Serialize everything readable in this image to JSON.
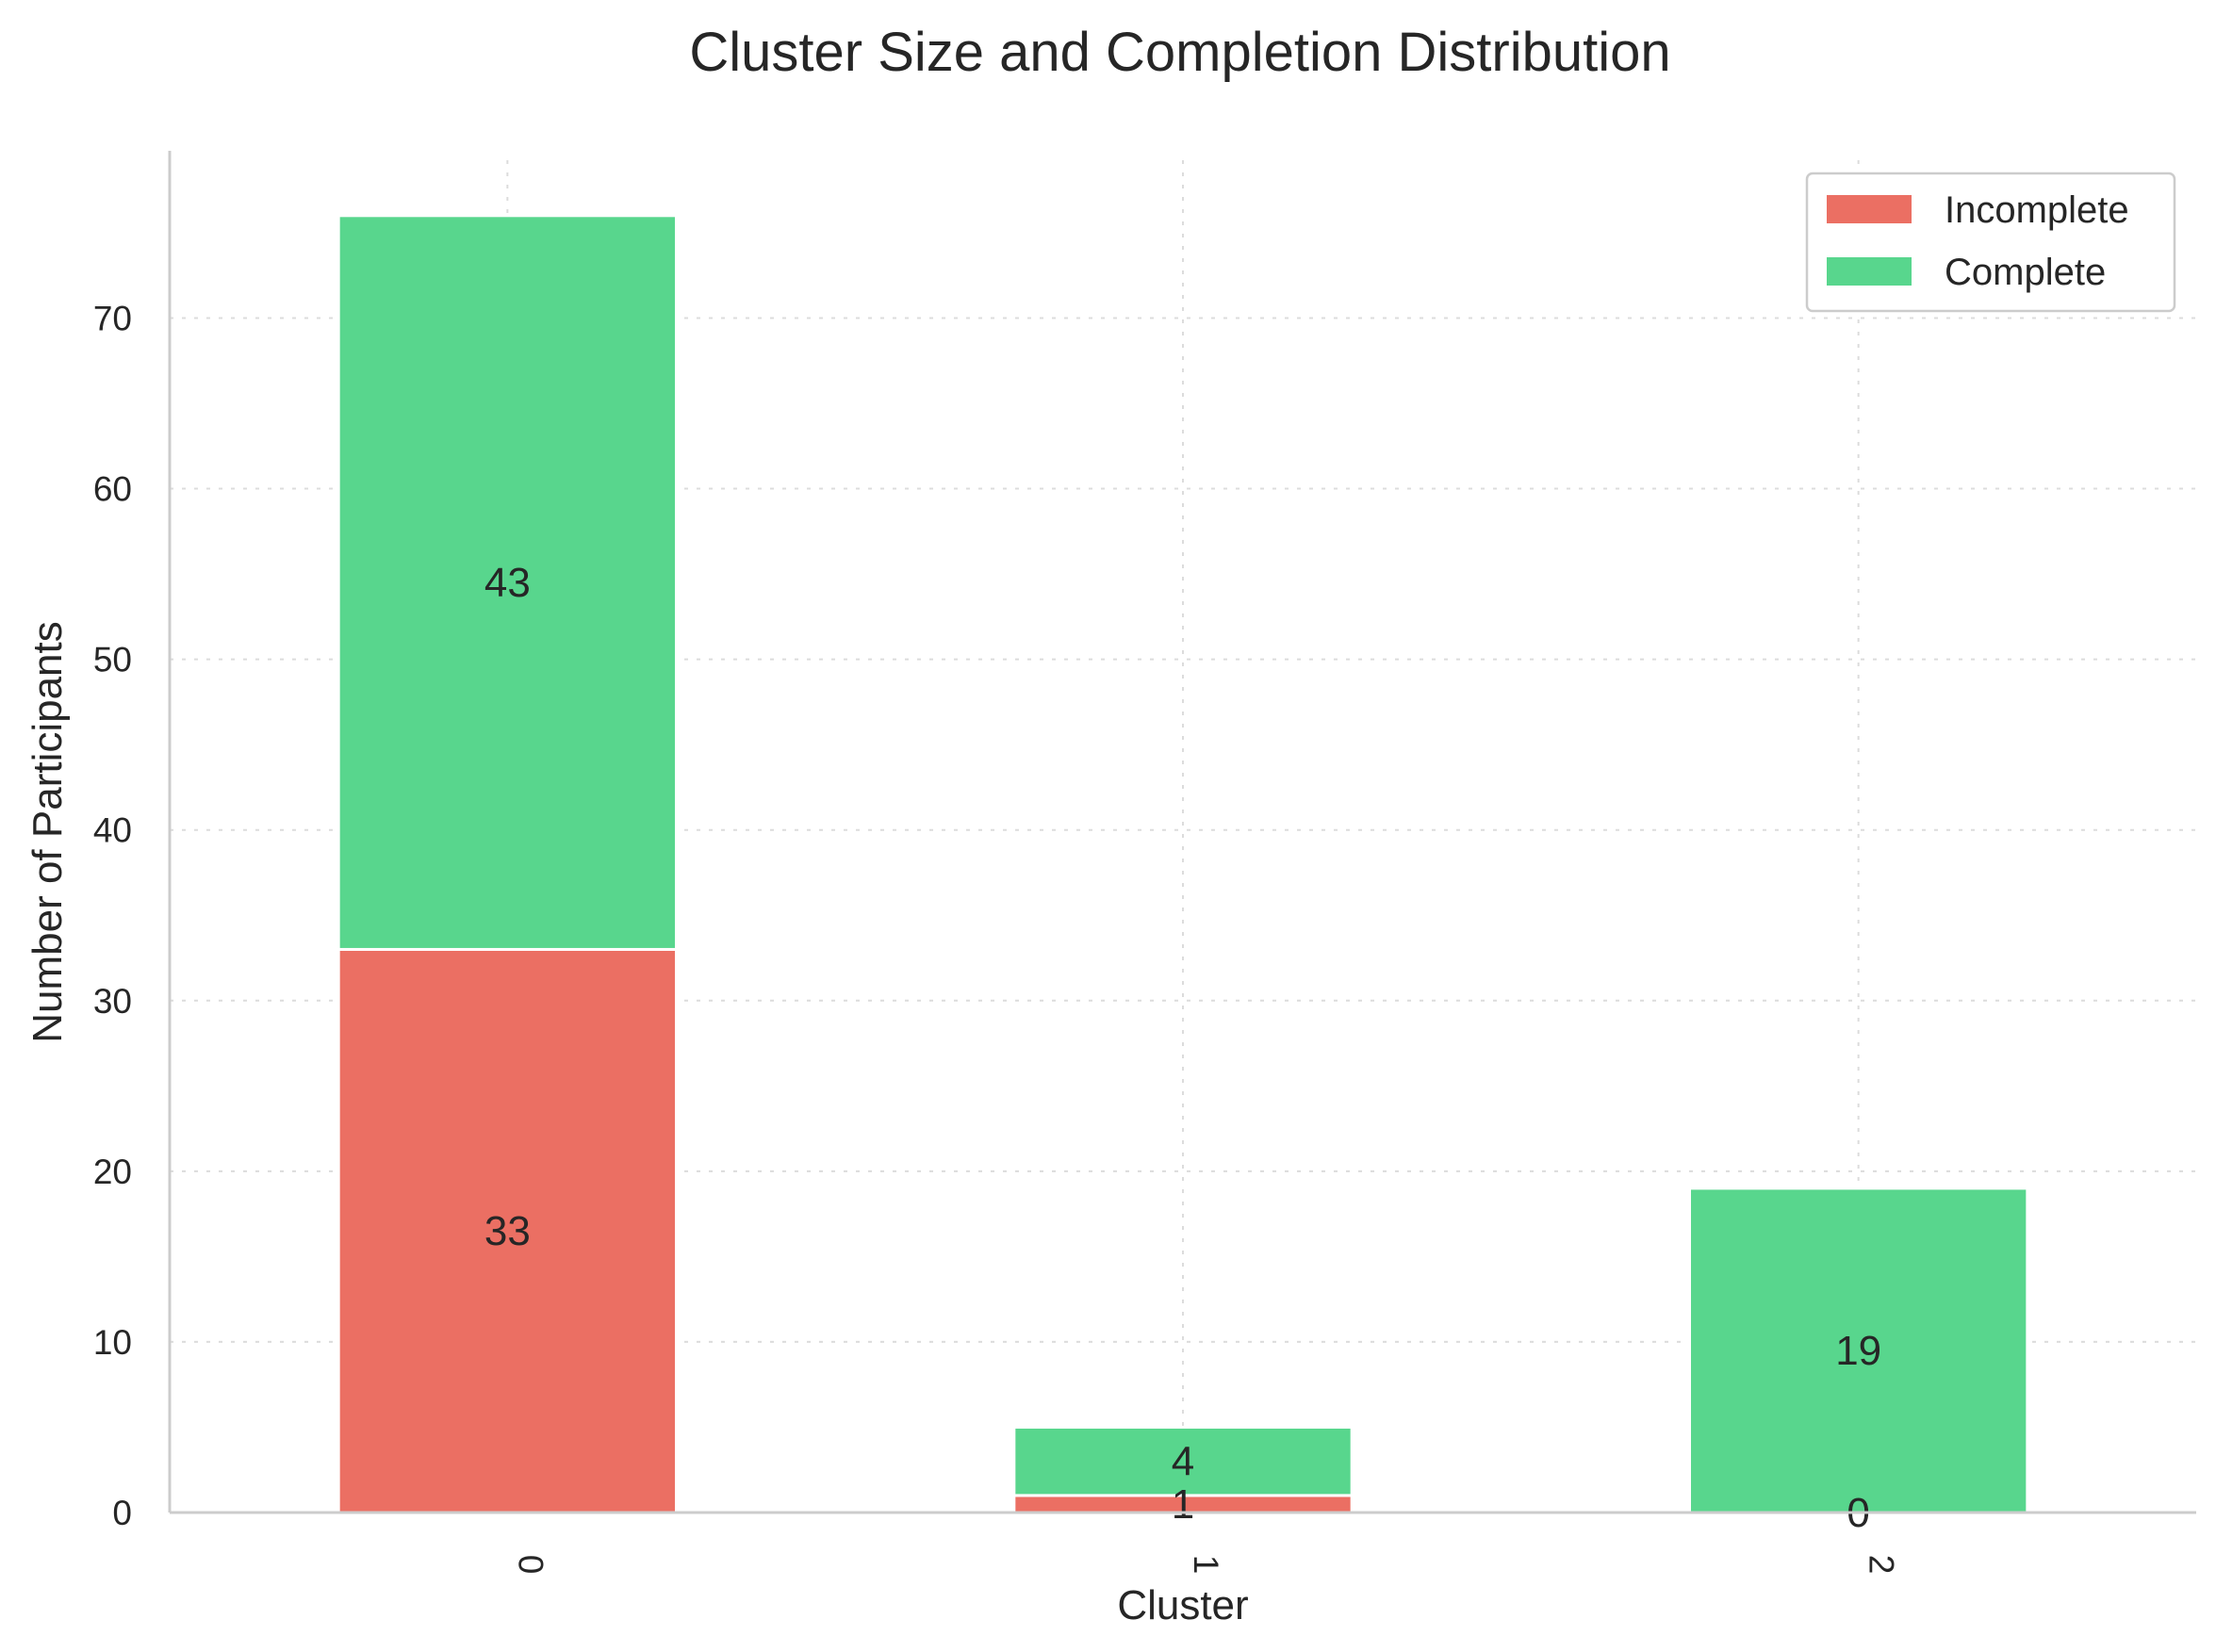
{
  "chart_data": {
    "type": "bar",
    "stacked": true,
    "title": "Cluster Size and Completion Distribution",
    "xlabel": "Cluster",
    "ylabel": "Number of Participants",
    "categories": [
      "0",
      "1",
      "2"
    ],
    "series": [
      {
        "name": "Incomplete",
        "values": [
          33,
          1,
          0
        ],
        "color": "#eb6f63"
      },
      {
        "name": "Complete",
        "values": [
          43,
          4,
          19
        ],
        "color": "#58d68d"
      }
    ],
    "ylim": [
      0,
      79.8
    ],
    "yticks": [
      0,
      10,
      20,
      30,
      40,
      50,
      60,
      70
    ],
    "grid": true,
    "legend_position": "top-right",
    "data_labels": true
  }
}
